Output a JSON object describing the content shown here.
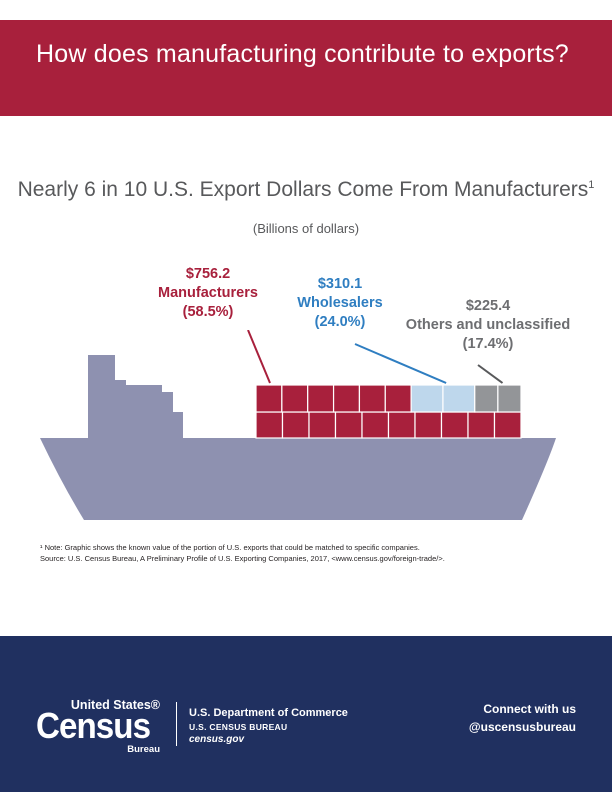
{
  "banner": {
    "title": "How does manufacturing contribute to exports?"
  },
  "chart_data": {
    "type": "bar",
    "title": "Nearly 6 in 10 U.S. Export Dollars Come From Manufacturers",
    "title_footnote_marker": "1",
    "subtitle": "(Billions of dollars)",
    "categories": [
      "Manufacturers",
      "Wholesalers",
      "Others and unclassified"
    ],
    "values": [
      756.2,
      310.1,
      225.4
    ],
    "percents": [
      58.5,
      24.0,
      17.4
    ],
    "value_labels": [
      "$756.2",
      "$310.1",
      "$225.4"
    ],
    "name_labels": [
      "Manufacturers",
      "Wholesalers",
      "Others and unclassified"
    ],
    "percent_labels": [
      "(58.5%)",
      "(24.0%)",
      "(17.4%)"
    ],
    "colors": [
      "#a8203c",
      "#bed7ec",
      "#939598"
    ],
    "ship_color": "#8e91b0"
  },
  "footnote": {
    "line1": "¹ Note: Graphic shows the known value of the portion of U.S. exports that could be matched to specific companies.",
    "line2": "Source: U.S. Census Bureau, A Preliminary Profile of U.S. Exporting Companies, 2017, <www.census.gov/foreign-trade/>."
  },
  "footer": {
    "logo_top": "United States®",
    "logo_main": "Census",
    "logo_bureau": "Bureau",
    "department": "U.S. Department of Commerce",
    "bureau": "U.S. CENSUS BUREAU",
    "website": "census.gov",
    "connect_line1": "Connect with us",
    "connect_line2": "@uscensusbureau"
  }
}
